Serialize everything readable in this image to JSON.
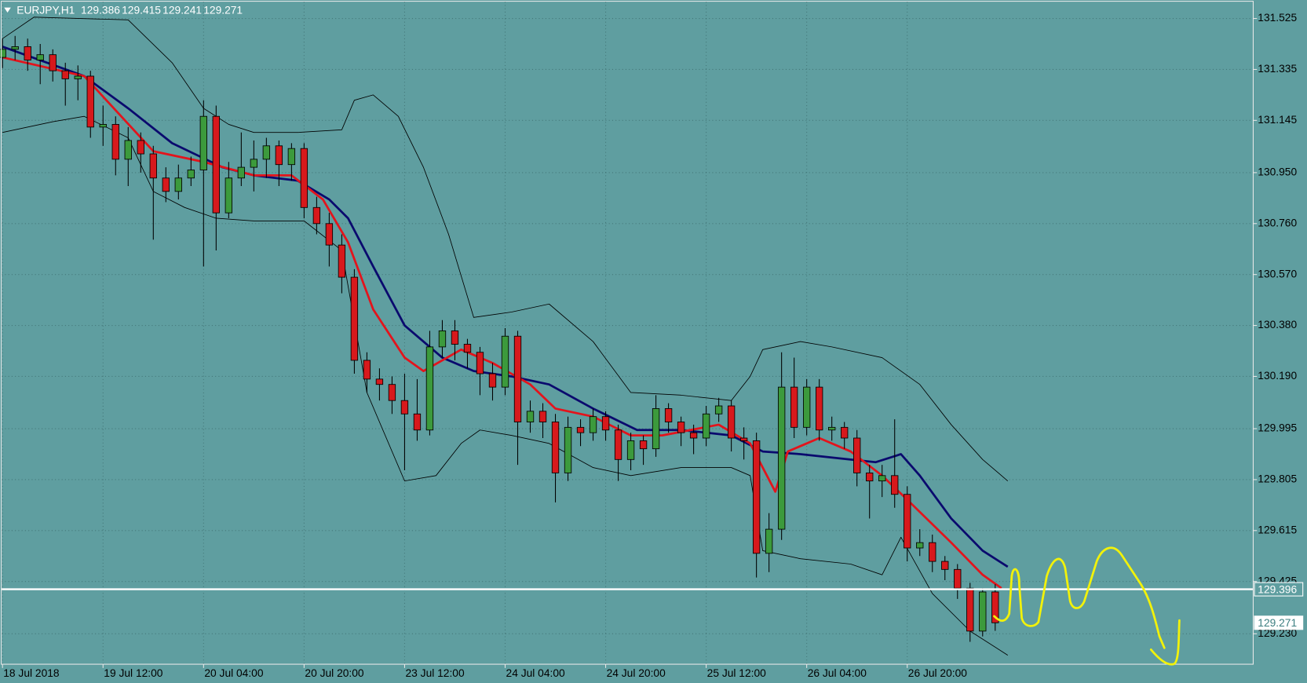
{
  "chart_data": {
    "type": "candlestick",
    "title": "EURJPY,H1",
    "bull_color": "#3c9a3c",
    "bear_color": "#d7191c",
    "xlim": [
      -0.2,
      99.5
    ],
    "ylim": [
      129.118,
      131.594
    ],
    "grid": true,
    "xticks": [
      {
        "value": 0,
        "label": "18 Jul 2018"
      },
      {
        "value": 8,
        "label": "19 Jul 12:00"
      },
      {
        "value": 16,
        "label": "20 Jul 04:00"
      },
      {
        "value": 24,
        "label": "20 Jul 20:00"
      },
      {
        "value": 32,
        "label": "23 Jul 12:00"
      },
      {
        "value": 40,
        "label": "24 Jul 04:00"
      },
      {
        "value": 48,
        "label": "24 Jul 20:00"
      },
      {
        "value": 56,
        "label": "25 Jul 12:00"
      },
      {
        "value": 64,
        "label": "26 Jul 04:00"
      },
      {
        "value": 72,
        "label": "26 Jul 20:00"
      }
    ],
    "yticks": [
      131.525,
      131.335,
      131.145,
      {
        "value": 130.95,
        "label": "130.950"
      },
      {
        "value": 130.76,
        "label": "130.760"
      },
      {
        "value": 130.57,
        "label": "130.570"
      },
      {
        "value": 130.38,
        "label": "130.380"
      },
      {
        "value": 130.19,
        "label": "130.190"
      },
      129.995,
      129.805,
      129.615,
      129.425,
      {
        "value": 129.23,
        "label": "129.230"
      }
    ],
    "candles": {
      "open": [
        131.38,
        131.41,
        131.42,
        131.37,
        131.39,
        131.33,
        131.3,
        131.31,
        131.12,
        131.13,
        131.0,
        131.07,
        131.02,
        130.93,
        130.88,
        130.93,
        130.96,
        131.16,
        130.8,
        130.93,
        130.97,
        131.0,
        131.05,
        130.98,
        131.04,
        130.82,
        130.76,
        130.68,
        130.56,
        130.25,
        130.18,
        130.16,
        130.1,
        130.05,
        129.99,
        130.3,
        130.36,
        130.31,
        130.28,
        130.2,
        130.15,
        130.34,
        130.02,
        130.06,
        130.02,
        129.83,
        130.0,
        129.98,
        130.04,
        129.99,
        129.88,
        129.95,
        129.92,
        130.07,
        130.02,
        129.98,
        129.96,
        130.05,
        130.08,
        129.96,
        129.95,
        129.53,
        129.62,
        130.15,
        130.0,
        130.15,
        129.99,
        130.0,
        129.96,
        129.83,
        129.8,
        129.82,
        129.75,
        129.55,
        129.57,
        129.5,
        129.47,
        129.4,
        129.24,
        129.386
      ],
      "high": [
        131.45,
        131.46,
        131.45,
        131.43,
        131.41,
        131.36,
        131.35,
        131.33,
        131.2,
        131.16,
        131.12,
        131.1,
        131.05,
        130.97,
        130.98,
        131.01,
        131.22,
        131.2,
        130.99,
        131.1,
        131.07,
        131.08,
        131.07,
        131.06,
        131.06,
        130.86,
        130.8,
        130.72,
        130.59,
        130.28,
        130.22,
        130.19,
        130.2,
        130.18,
        130.36,
        130.4,
        130.4,
        130.33,
        130.3,
        130.24,
        130.37,
        130.36,
        130.1,
        130.09,
        130.05,
        130.04,
        130.03,
        130.07,
        130.06,
        130.01,
        129.98,
        129.97,
        130.12,
        130.09,
        130.04,
        130.01,
        130.08,
        130.11,
        130.1,
        130.0,
        129.98,
        129.68,
        130.28,
        130.26,
        130.18,
        130.18,
        130.04,
        130.02,
        129.99,
        129.86,
        129.86,
        130.03,
        129.78,
        129.62,
        129.6,
        129.52,
        129.49,
        129.42,
        129.4,
        129.415
      ],
      "low": [
        131.34,
        131.37,
        131.33,
        131.28,
        131.29,
        131.2,
        131.22,
        131.08,
        131.05,
        130.94,
        130.9,
        130.95,
        130.7,
        130.84,
        130.85,
        130.9,
        130.6,
        130.66,
        130.78,
        130.9,
        130.88,
        130.93,
        130.9,
        130.92,
        130.78,
        130.72,
        130.6,
        130.5,
        130.2,
        130.13,
        130.1,
        130.05,
        129.84,
        129.95,
        129.97,
        130.26,
        130.25,
        130.22,
        130.12,
        130.1,
        130.12,
        129.86,
        129.98,
        129.96,
        129.72,
        129.8,
        129.93,
        129.95,
        129.95,
        129.8,
        129.84,
        129.86,
        129.89,
        129.98,
        129.93,
        129.9,
        129.93,
        130.02,
        129.91,
        129.88,
        129.44,
        129.46,
        129.58,
        129.96,
        129.97,
        129.95,
        129.95,
        129.92,
        129.78,
        129.66,
        129.74,
        129.7,
        129.5,
        129.52,
        129.46,
        129.43,
        129.36,
        129.2,
        129.22,
        129.241
      ],
      "close": [
        131.41,
        131.42,
        131.37,
        131.39,
        131.33,
        131.3,
        131.31,
        131.12,
        131.13,
        131.0,
        131.07,
        131.02,
        130.93,
        130.88,
        130.93,
        130.96,
        131.16,
        130.8,
        130.93,
        130.97,
        131.0,
        131.05,
        130.98,
        131.04,
        130.82,
        130.76,
        130.68,
        130.56,
        130.25,
        130.18,
        130.16,
        130.1,
        130.05,
        129.99,
        130.3,
        130.36,
        130.31,
        130.28,
        130.2,
        130.15,
        130.34,
        130.02,
        130.06,
        130.02,
        129.83,
        130.0,
        129.98,
        130.04,
        129.99,
        129.88,
        129.95,
        129.92,
        130.07,
        130.02,
        129.98,
        129.96,
        130.05,
        130.08,
        129.96,
        129.95,
        129.53,
        129.62,
        130.15,
        130.0,
        130.15,
        129.99,
        130.0,
        129.96,
        129.83,
        129.8,
        129.82,
        129.75,
        129.55,
        129.57,
        129.5,
        129.47,
        129.4,
        129.24,
        129.386,
        129.271
      ]
    },
    "indicators": [
      {
        "type": "line",
        "color": "#000000",
        "width": 0.8,
        "x": [
          0,
          2.5,
          10,
          13.5,
          16,
          18,
          20,
          23.5,
          27,
          28,
          29.5,
          31.5,
          33.5,
          35.5,
          37.5,
          40.5,
          43.5,
          47,
          50,
          54,
          58,
          59.5,
          60.5,
          63.5,
          66,
          70,
          73,
          75.5,
          78,
          80
        ],
        "values": [
          131.45,
          131.53,
          131.52,
          131.36,
          131.19,
          131.13,
          131.1,
          131.1,
          131.11,
          131.22,
          131.24,
          131.16,
          130.97,
          130.72,
          130.41,
          130.43,
          130.46,
          130.32,
          130.13,
          130.12,
          130.1,
          130.19,
          130.29,
          130.32,
          130.3,
          130.26,
          130.16,
          130.01,
          129.88,
          129.8
        ]
      },
      {
        "type": "line",
        "color": "#000000",
        "width": 0.8,
        "x": [
          0,
          4,
          6.5,
          10,
          12,
          14.5,
          17,
          20,
          24,
          27,
          29,
          32,
          34.5,
          36.5,
          38,
          40.5,
          43.5,
          47,
          50,
          54,
          58,
          59.5,
          60.5,
          63.5,
          67.5,
          70,
          71.5,
          74,
          77,
          80
        ],
        "values": [
          131.1,
          131.14,
          131.16,
          131.08,
          130.88,
          130.82,
          130.78,
          130.77,
          130.77,
          130.66,
          130.13,
          129.8,
          129.82,
          129.94,
          129.99,
          129.97,
          129.94,
          129.85,
          129.82,
          129.85,
          129.85,
          129.82,
          129.54,
          129.51,
          129.49,
          129.45,
          129.59,
          129.38,
          129.24,
          129.15
        ]
      },
      {
        "type": "line",
        "color": "#0a0a6e",
        "width": 2.6,
        "x": [
          0,
          6.5,
          10,
          13.5,
          17.5,
          20,
          23.5,
          26,
          27.5,
          29.5,
          32,
          35,
          37.5,
          40.5,
          43.5,
          47,
          50.5,
          54,
          58,
          60.5,
          63.5,
          67.5,
          69.5,
          71.5,
          73,
          75.5,
          78,
          80
        ],
        "values": [
          131.42,
          131.31,
          131.19,
          131.06,
          130.97,
          130.94,
          130.92,
          130.85,
          130.78,
          130.6,
          130.38,
          130.26,
          130.21,
          130.19,
          130.16,
          130.07,
          129.99,
          129.99,
          129.97,
          129.91,
          129.9,
          129.88,
          129.87,
          129.9,
          129.82,
          129.66,
          129.54,
          129.48
        ]
      },
      {
        "type": "line",
        "color": "#e3141c",
        "width": 2.6,
        "x": [
          0,
          6.5,
          12,
          16,
          20,
          23,
          25.5,
          27.5,
          29.5,
          32,
          33.5,
          36.5,
          39,
          42,
          44,
          47,
          50,
          52.5,
          57,
          59.5,
          61.5,
          62.5,
          65,
          67.5,
          70,
          72,
          75.5,
          78,
          79.5
        ],
        "values": [
          131.38,
          131.31,
          131.03,
          130.99,
          130.94,
          130.94,
          130.85,
          130.69,
          130.44,
          130.26,
          130.21,
          130.29,
          130.24,
          130.16,
          130.07,
          130.04,
          129.97,
          129.97,
          130.01,
          129.94,
          129.76,
          129.91,
          129.96,
          129.91,
          129.82,
          129.73,
          129.57,
          129.45,
          129.4
        ]
      }
    ],
    "hline": {
      "value": 129.396,
      "color": "#ffffff"
    }
  }
}
